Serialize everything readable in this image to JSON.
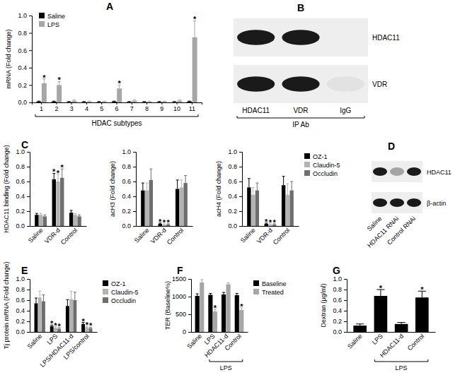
{
  "chart_data": [
    {
      "type": "bar",
      "title": "A",
      "categories": [
        "1",
        "2",
        "3",
        "4",
        "5",
        "6",
        "7",
        "8",
        "9",
        "10",
        "11"
      ],
      "xlabel": "HDAC subtypes",
      "ylabel": "mRNA (Fold change)",
      "ylim": [
        0,
        1
      ],
      "yticks": [
        {
          "value": 0,
          "label": "0.0"
        },
        0.2,
        0.4,
        0.6,
        0.8,
        {
          "value": 1,
          "label": "1.0"
        }
      ],
      "legend": "top-left",
      "series": [
        {
          "name": "Saline",
          "color": "#000000",
          "values": [
            0.01,
            0.01,
            0.005,
            0.005,
            0.005,
            0.01,
            0.005,
            0.005,
            0.005,
            0.005,
            0.01
          ],
          "errors": [
            0.005,
            0.005,
            0.005,
            0.005,
            0.005,
            0.005,
            0.005,
            0.005,
            0.005,
            0.005,
            0.005
          ]
        },
        {
          "name": "LPS",
          "color": "#a6a6a6",
          "values": [
            0.22,
            0.2,
            0.02,
            0.01,
            0.01,
            0.16,
            0.02,
            0.01,
            0.01,
            0.02,
            0.75
          ],
          "errors": [
            0.05,
            0.04,
            0.01,
            0.005,
            0.005,
            0.04,
            0.01,
            0.005,
            0.005,
            0.01,
            0.19
          ],
          "significance": [
            "*",
            "*",
            null,
            null,
            null,
            "*",
            null,
            null,
            null,
            null,
            "*"
          ]
        }
      ]
    },
    {
      "type": "bar",
      "title": "C",
      "categories": [
        "Saline",
        "VDR-d",
        "Control"
      ],
      "ylabel": "HDAC11 binding (Fold change)",
      "ylim": [
        0,
        1
      ],
      "yticks": [
        {
          "value": 0,
          "label": "0.0"
        },
        0.2,
        0.4,
        0.6,
        0.8,
        {
          "value": 1,
          "label": "1.0"
        }
      ],
      "series": [
        {
          "name": "OZ-1",
          "color": "#000000",
          "values": [
            0.15,
            0.63,
            0.18
          ],
          "errors": [
            0.02,
            0.08,
            0.03
          ],
          "significance": [
            null,
            "*",
            null
          ]
        },
        {
          "name": "Claudin-5",
          "color": "#b3b3b3",
          "values": [
            0.15,
            0.6,
            0.15
          ],
          "errors": [
            0.02,
            0.1,
            0.02
          ],
          "significance": [
            null,
            "*",
            null
          ]
        },
        {
          "name": "Occludin",
          "color": "#6e6e6e",
          "values": [
            0.13,
            0.65,
            0.13
          ],
          "errors": [
            0.02,
            0.12,
            0.02
          ],
          "significance": [
            null,
            "*",
            null
          ]
        }
      ]
    },
    {
      "type": "bar",
      "categories": [
        "Saline",
        "VDR-d",
        "Control"
      ],
      "ylabel": "acH3 (Fold change)",
      "ylim": [
        0,
        1
      ],
      "yticks": [
        {
          "value": 0,
          "label": "0.0"
        },
        0.2,
        0.4,
        0.6,
        0.8,
        {
          "value": 1,
          "label": "1.0"
        }
      ],
      "series": [
        {
          "name": "OZ-1",
          "color": "#000000",
          "values": [
            0.48,
            0.03,
            0.5
          ],
          "errors": [
            0.1,
            0.01,
            0.12
          ],
          "significance": [
            null,
            "*",
            null
          ]
        },
        {
          "name": "Claudin-5",
          "color": "#b3b3b3",
          "values": [
            0.48,
            0.02,
            0.52
          ],
          "errors": [
            0.1,
            0.01,
            0.1
          ],
          "significance": [
            null,
            "*",
            null
          ]
        },
        {
          "name": "Occludin",
          "color": "#6e6e6e",
          "values": [
            0.62,
            0.02,
            0.58
          ],
          "errors": [
            0.15,
            0.01,
            0.1
          ],
          "significance": [
            null,
            "*",
            null
          ]
        }
      ]
    },
    {
      "type": "bar",
      "categories": [
        "Saline",
        "VDR-d",
        "Control"
      ],
      "ylabel": "acH4 (Fold change)",
      "ylim": [
        0,
        1
      ],
      "yticks": [
        {
          "value": 0,
          "label": "0.0"
        },
        0.2,
        0.4,
        0.6,
        0.8,
        {
          "value": 1,
          "label": "1.0"
        }
      ],
      "legend": "right",
      "series": [
        {
          "name": "OZ-1",
          "color": "#000000",
          "values": [
            0.52,
            0.03,
            0.55
          ],
          "errors": [
            0.12,
            0.01,
            0.12
          ],
          "significance": [
            null,
            "*",
            null
          ]
        },
        {
          "name": "Claudin-5",
          "color": "#b3b3b3",
          "values": [
            0.42,
            0.02,
            0.42
          ],
          "errors": [
            0.1,
            0.01,
            0.15
          ],
          "significance": [
            null,
            "*",
            null
          ]
        },
        {
          "name": "Occludin",
          "color": "#6e6e6e",
          "values": [
            0.48,
            0.02,
            0.48
          ],
          "errors": [
            0.1,
            0.01,
            0.12
          ],
          "significance": [
            null,
            "*",
            null
          ]
        }
      ]
    },
    {
      "type": "bar",
      "title": "E",
      "categories": [
        "Saline",
        "LPS",
        "LPS/HDAC11-d",
        "LPS/control"
      ],
      "ylabel": "Tj protein mRNA (Fold change)",
      "ylim": [
        0,
        1
      ],
      "yticks": [
        {
          "value": 0,
          "label": "0.0"
        },
        0.2,
        0.4,
        0.6,
        0.8,
        {
          "value": 1,
          "label": "1.0"
        }
      ],
      "legend": "right",
      "series": [
        {
          "name": "OZ-1",
          "color": "#000000",
          "values": [
            0.54,
            0.11,
            0.49,
            0.15
          ],
          "errors": [
            0.1,
            0.02,
            0.12,
            0.03
          ],
          "significance": [
            null,
            "*",
            null,
            "*"
          ]
        },
        {
          "name": "Claudin-5",
          "color": "#b3b3b3",
          "values": [
            0.65,
            0.08,
            0.62,
            0.09
          ],
          "errors": [
            0.12,
            0.02,
            0.15,
            0.02
          ],
          "significance": [
            null,
            "*",
            null,
            "*"
          ]
        },
        {
          "name": "Occludin",
          "color": "#6e6e6e",
          "values": [
            0.58,
            0.06,
            0.6,
            0.07
          ],
          "errors": [
            0.12,
            0.02,
            0.15,
            0.02
          ],
          "significance": [
            null,
            "*",
            null,
            "*"
          ]
        }
      ]
    },
    {
      "type": "bar",
      "title": "F",
      "categories": [
        "Saline",
        "LPS",
        "HDAC11-d",
        "Control"
      ],
      "group": {
        "label": "LPS",
        "from": "LPS",
        "to": "Control"
      },
      "ylabel": "TER (Baseline%)",
      "ylim": [
        0,
        1500
      ],
      "yticks": [
        0,
        500,
        1000,
        1500
      ],
      "legend": "right",
      "series": [
        {
          "name": "Baseline",
          "color": "#000000",
          "values": [
            1020,
            1050,
            1060,
            1040
          ],
          "errors": [
            60,
            40,
            60,
            50
          ]
        },
        {
          "name": "Treated",
          "color": "#a6a6a6",
          "values": [
            1400,
            580,
            1350,
            620
          ],
          "errors": [
            80,
            60,
            40,
            60
          ],
          "significance": [
            null,
            "*",
            null,
            "*"
          ]
        }
      ]
    },
    {
      "type": "bar",
      "title": "G",
      "categories": [
        "Saline",
        "LPS",
        "HDAC11-d",
        "Control"
      ],
      "group": {
        "label": "LPS",
        "from": "LPS",
        "to": "Control"
      },
      "ylabel": "Dextran (μg/ml)",
      "ylim": [
        0,
        1
      ],
      "yticks": [
        {
          "value": 0,
          "label": "0.0"
        },
        0.2,
        0.4,
        0.6,
        0.8,
        {
          "value": 1,
          "label": "1.0"
        }
      ],
      "color": "#000000",
      "values": [
        0.12,
        0.68,
        0.15,
        0.65
      ],
      "errors": [
        0.03,
        0.12,
        0.03,
        0.12
      ],
      "significance": [
        null,
        "*",
        null,
        "*"
      ]
    }
  ],
  "blots": [
    {
      "title": "B",
      "rows": [
        "HDAC11",
        "VDR"
      ],
      "lanes": [
        "HDAC11",
        "VDR",
        "IgG"
      ],
      "lane_group": "IP Ab",
      "bands": [
        [
          1,
          1,
          0
        ],
        [
          1,
          1,
          0.05
        ]
      ]
    },
    {
      "title": "D",
      "rows": [
        "HDAC11",
        "β-actin"
      ],
      "lanes": [
        "Saline",
        "HDAC11 RNAi",
        "Control RNAi"
      ],
      "bands": [
        [
          1,
          0.35,
          1
        ],
        [
          1,
          1,
          1
        ]
      ]
    }
  ]
}
